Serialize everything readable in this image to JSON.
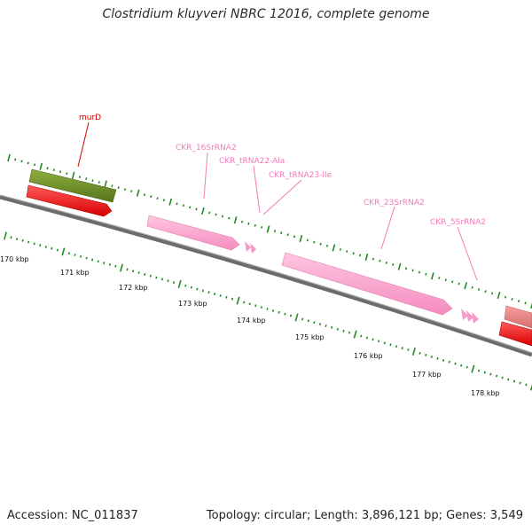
{
  "title": "Clostridium kluyveri NBRC 12016, complete genome",
  "footer": {
    "accession": "Accession: NC_011837",
    "summary": "Topology: circular; Length: 3,896,121 bp; Genes: 3,549"
  },
  "scale": {
    "ticks": [
      {
        "label": "170 kbp"
      },
      {
        "label": "171 kbp"
      },
      {
        "label": "172 kbp"
      },
      {
        "label": "173 kbp"
      },
      {
        "label": "174 kbp"
      },
      {
        "label": "175 kbp"
      },
      {
        "label": "176 kbp"
      },
      {
        "label": "177 kbp"
      },
      {
        "label": "178 kbp"
      }
    ]
  },
  "features": [
    {
      "name": "murD",
      "type": "gene",
      "color": "#cc0000"
    },
    {
      "name": "CKR_16SrRNA2",
      "type": "rRNA",
      "color": "#f37ab8"
    },
    {
      "name": "CKR_tRNA22-Ala",
      "type": "tRNA",
      "color": "#f37ab8"
    },
    {
      "name": "CKR_tRNA23-Ile",
      "type": "tRNA",
      "color": "#f37ab8"
    },
    {
      "name": "CKR_23SrRNA2",
      "type": "rRNA",
      "color": "#f37ab8"
    },
    {
      "name": "CKR_5SrRNA2",
      "type": "rRNA",
      "color": "#f37ab8"
    }
  ],
  "colors": {
    "backbone": "#7a7a7a",
    "tick": "#1f8a1f",
    "gene_green": "#6f8f2a",
    "cds_red": "#ff0000",
    "rna_pink": "#ffa6cf",
    "salmon": "#e58080"
  }
}
